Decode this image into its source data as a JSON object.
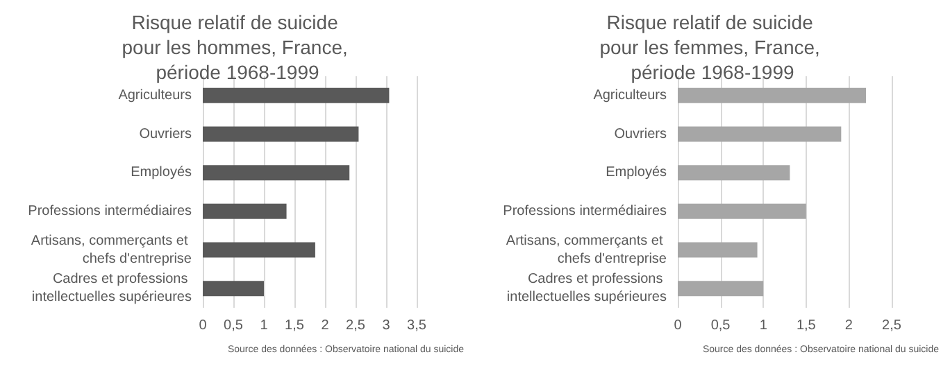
{
  "chart_data": [
    {
      "type": "bar",
      "orientation": "horizontal",
      "title": "Risque relatif de suicide pour les hommes, France, période 1968-1999",
      "categories": [
        "Agriculteurs",
        "Ouvriers",
        "Employés",
        "Professions intermédiaires",
        "Artisans, commerçants et chefs d'entreprise",
        "Cadres et professions intellectuelles supérieures"
      ],
      "values": [
        3.05,
        2.55,
        2.4,
        1.37,
        1.84,
        1.0
      ],
      "color": "#595959",
      "xlim": [
        0,
        3.5
      ],
      "xticks": [
        0,
        {
          "value": 0.5,
          "label": "0,5"
        },
        1,
        {
          "value": 1.5,
          "label": "1,5"
        },
        2,
        {
          "value": 2.5,
          "label": "2,5"
        },
        3,
        {
          "value": 3.5,
          "label": "3,5"
        }
      ],
      "grid": "x",
      "annotations": [
        "Source des données : Observatoire national du suicide"
      ]
    },
    {
      "type": "bar",
      "orientation": "horizontal",
      "title": "Risque relatif de suicide pour les femmes, France, période 1968-1999",
      "categories": [
        "Agriculteurs",
        "Ouvriers",
        "Employés",
        "Professions intermédiaires",
        "Artisans, commerçants et chefs d'entreprise",
        "Cadres et professions intellectuelles supérieures"
      ],
      "values": [
        2.2,
        1.91,
        1.31,
        1.5,
        0.93,
        1.0
      ],
      "color": "#a6a6a6",
      "xlim": [
        0,
        2.5
      ],
      "xticks": [
        0,
        {
          "value": 0.5,
          "label": "0,5"
        },
        1,
        {
          "value": 1.5,
          "label": "1,5"
        },
        2,
        {
          "value": 2.5,
          "label": "2,5"
        }
      ],
      "grid": "x",
      "annotations": [
        "Source des données : Observatoire national du suicide"
      ]
    }
  ]
}
